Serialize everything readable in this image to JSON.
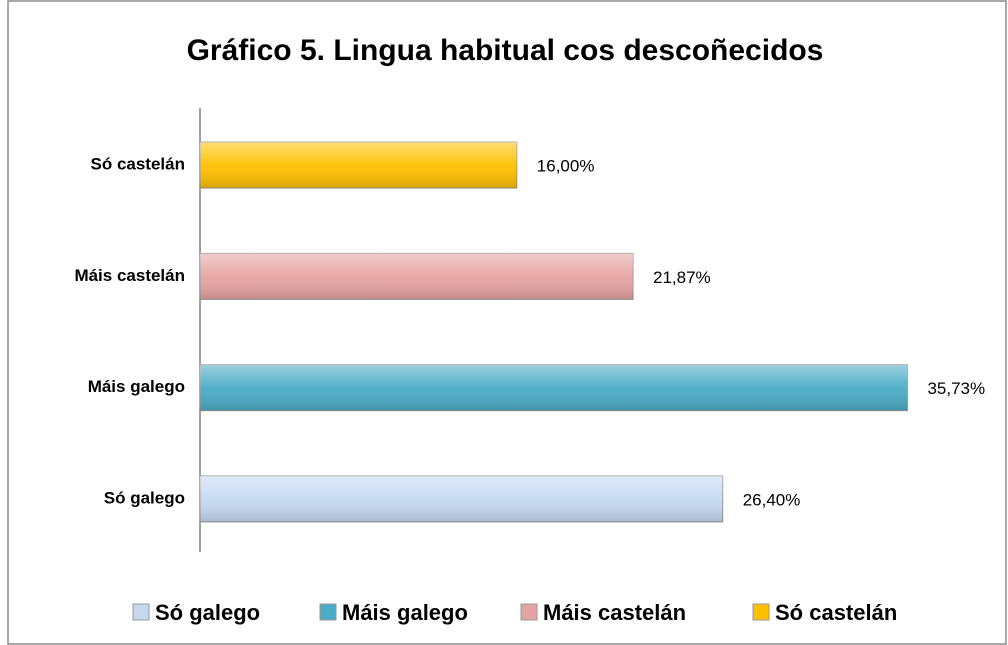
{
  "chart_data": {
    "type": "bar",
    "orientation": "horizontal",
    "title": "Gráfico 5. Lingua habitual  cos descoñecidos",
    "categories": [
      "Só galego",
      "Máis galego",
      "Máis castelán",
      "Só castelán"
    ],
    "values": [
      26.4,
      35.73,
      21.87,
      16.0
    ],
    "value_labels": [
      "26,40%",
      "35,73%",
      "21,87%",
      "16,00%"
    ],
    "colors": [
      "#c6d9f1",
      "#4bacc6",
      "#e6a3a3",
      "#ffc000"
    ],
    "xlim": [
      0,
      40
    ],
    "legend": "bottom"
  }
}
